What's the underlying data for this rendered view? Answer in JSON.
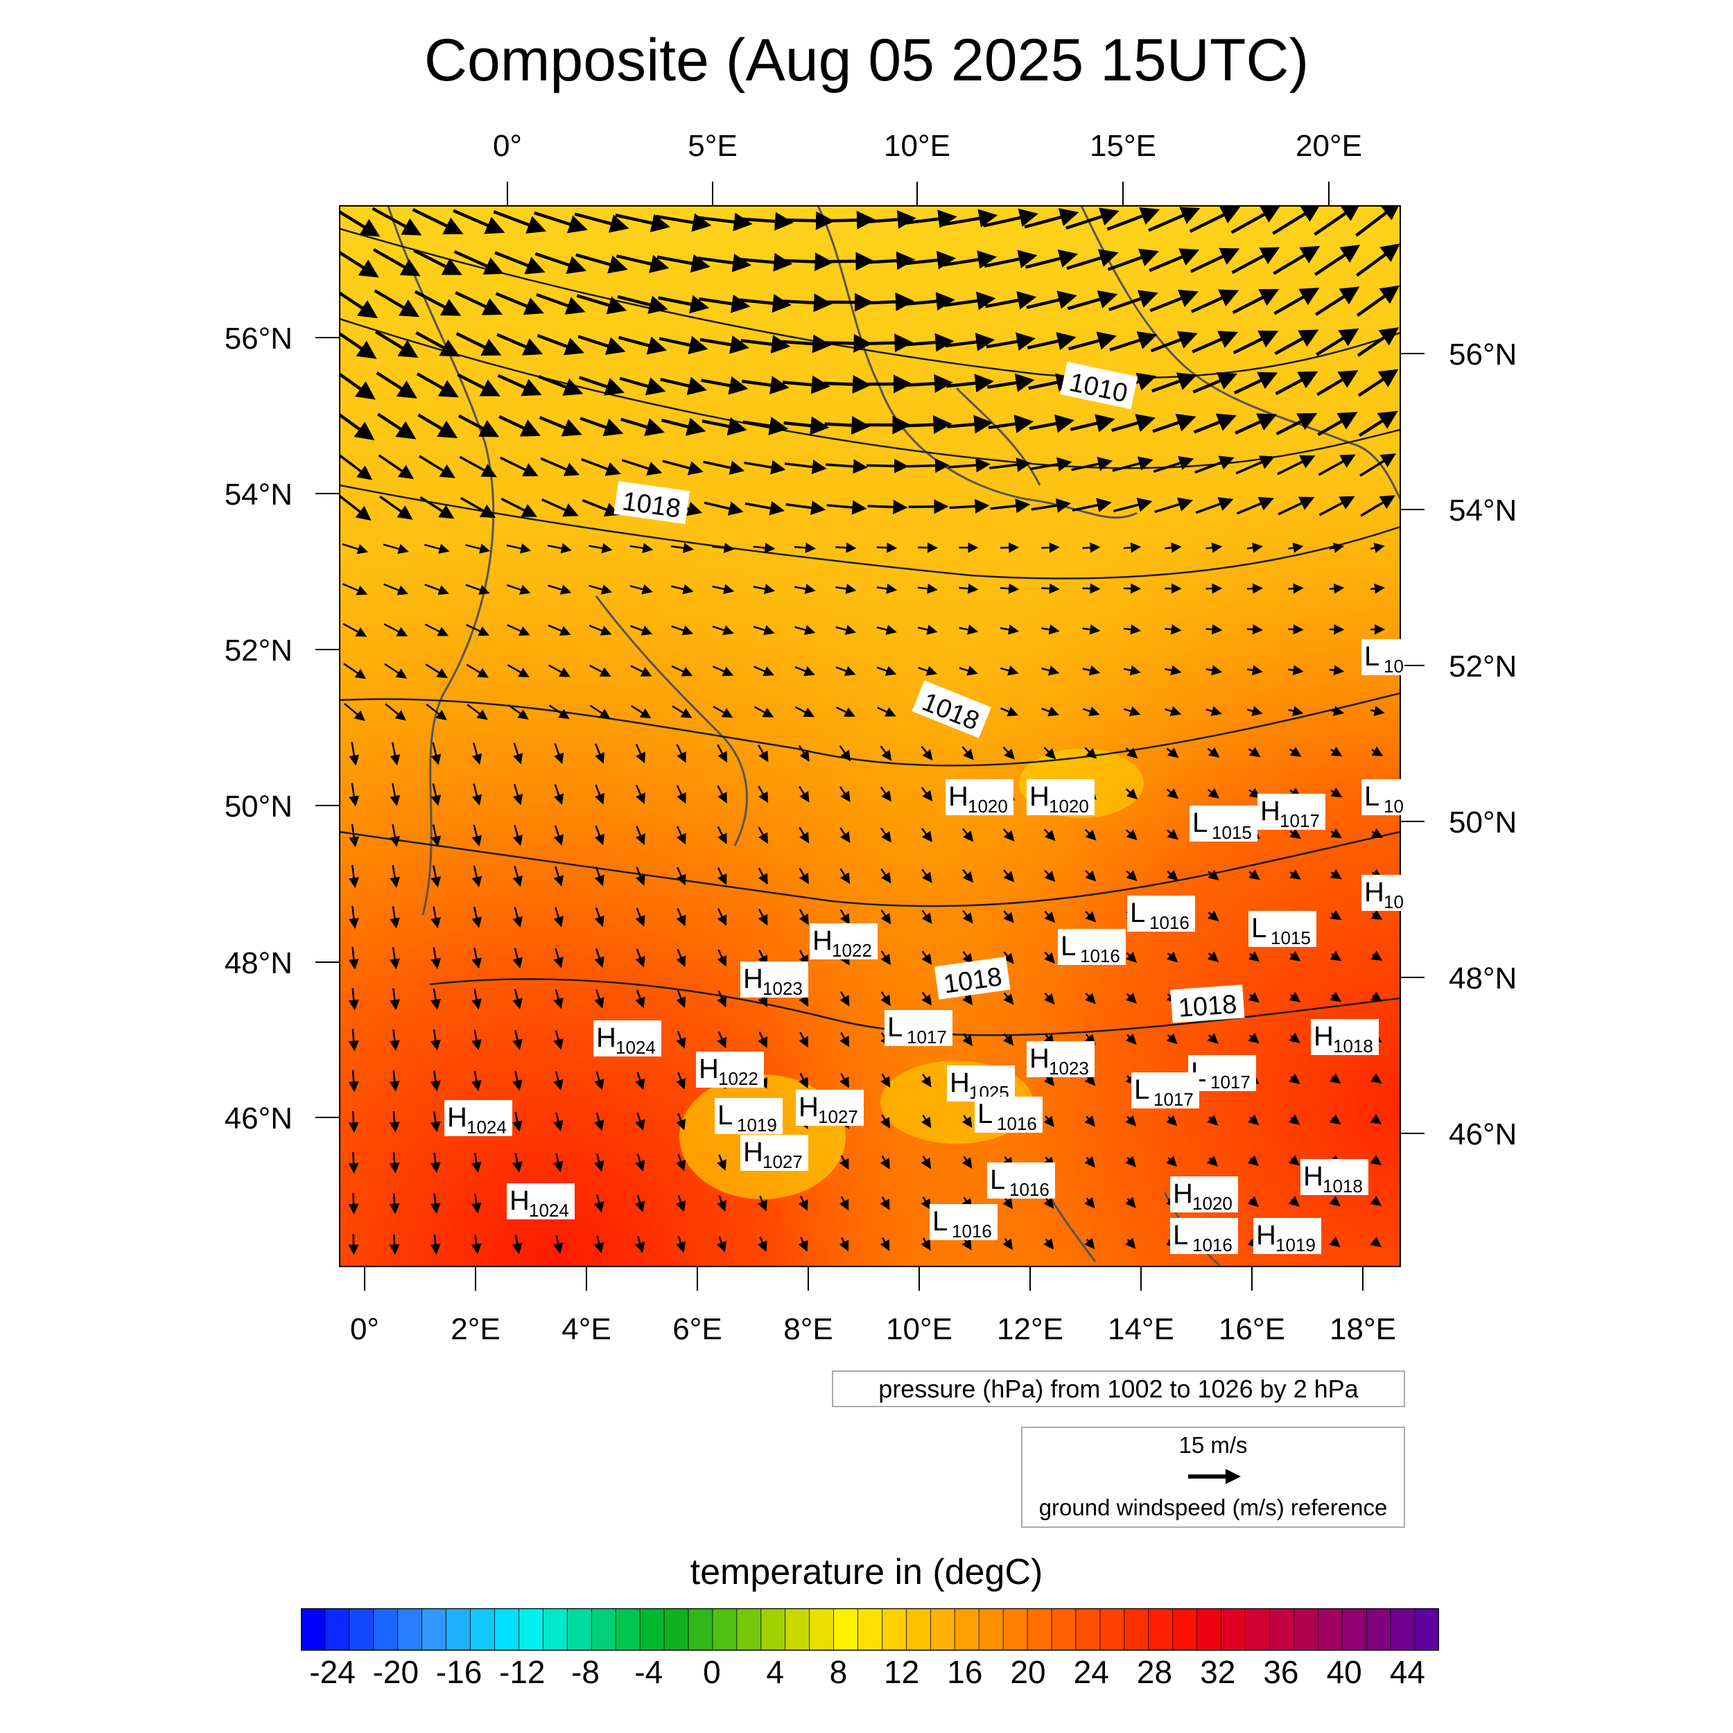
{
  "title": "Composite (Aug 05 2025 15UTC)",
  "top_lon_labels": [
    "0°",
    "5°E",
    "10°E",
    "15°E",
    "20°E"
  ],
  "bottom_lon_labels": [
    "0°",
    "2°E",
    "4°E",
    "6°E",
    "8°E",
    "10°E",
    "12°E",
    "14°E",
    "16°E",
    "18°E"
  ],
  "left_lat_labels": [
    "56°N",
    "54°N",
    "52°N",
    "50°N",
    "48°N",
    "46°N"
  ],
  "right_lat_labels": [
    "56°N",
    "54°N",
    "52°N",
    "50°N",
    "48°N",
    "46°N"
  ],
  "isobar_labels": [
    "1010",
    "1018",
    "1018",
    "1018",
    "1018"
  ],
  "pressure_centers": [
    {
      "letter": "H",
      "value": "1020"
    },
    {
      "letter": "H",
      "value": "1020"
    },
    {
      "letter": "L",
      "value": "1015"
    },
    {
      "letter": "H",
      "value": "1017"
    },
    {
      "letter": "L",
      "value": "10"
    },
    {
      "letter": "L",
      "value": "10"
    },
    {
      "letter": "H",
      "value": "10"
    },
    {
      "letter": "L",
      "value": "1016"
    },
    {
      "letter": "L",
      "value": "1015"
    },
    {
      "letter": "L",
      "value": "1016"
    },
    {
      "letter": "H",
      "value": "1022"
    },
    {
      "letter": "H",
      "value": "1023"
    },
    {
      "letter": "H",
      "value": "1024"
    },
    {
      "letter": "L",
      "value": "1017"
    },
    {
      "letter": "H",
      "value": "1018"
    },
    {
      "letter": "H",
      "value": "1022"
    },
    {
      "letter": "H",
      "value": "1023"
    },
    {
      "letter": "L",
      "value": "1017"
    },
    {
      "letter": "H",
      "value": "1025"
    },
    {
      "letter": "L",
      "value": "1017"
    },
    {
      "letter": "H",
      "value": "1024"
    },
    {
      "letter": "L",
      "value": "1019"
    },
    {
      "letter": "H",
      "value": "1027"
    },
    {
      "letter": "L",
      "value": "1016"
    },
    {
      "letter": "H",
      "value": "1027"
    },
    {
      "letter": "L",
      "value": "1016"
    },
    {
      "letter": "H",
      "value": "1018"
    },
    {
      "letter": "H",
      "value": "1020"
    },
    {
      "letter": "H",
      "value": "1024"
    },
    {
      "letter": "L",
      "value": "1016"
    },
    {
      "letter": "L",
      "value": "1016"
    },
    {
      "letter": "H",
      "value": "1019"
    }
  ],
  "pressure_note": "pressure (hPa) from 1002 to 1026 by 2 hPa",
  "wind_reference": {
    "speed": "15 m/s",
    "description": "ground windspeed (m/s) reference"
  },
  "colorbar": {
    "title": "temperature in (degC)",
    "ticks": [
      "-24",
      "-20",
      "-16",
      "-12",
      "-8",
      "-4",
      "0",
      "4",
      "8",
      "12",
      "16",
      "20",
      "24",
      "28",
      "32",
      "36",
      "40",
      "44"
    ],
    "colors": [
      "#0000ff",
      "#0a28ff",
      "#1448ff",
      "#1e64ff",
      "#2880ff",
      "#3098ff",
      "#20b0ff",
      "#10c8ff",
      "#00e0ff",
      "#00f0f0",
      "#00e8c8",
      "#00dca0",
      "#00d078",
      "#00c450",
      "#00b830",
      "#10b020",
      "#30b818",
      "#50c010",
      "#78c808",
      "#a0d000",
      "#c8d800",
      "#e8e000",
      "#fff000",
      "#ffe000",
      "#ffd000",
      "#ffc000",
      "#ffb000",
      "#ffa000",
      "#ff9000",
      "#ff8000",
      "#ff7000",
      "#ff6000",
      "#ff5000",
      "#ff4000",
      "#ff3000",
      "#ff2000",
      "#ff1000",
      "#f00010",
      "#e00020",
      "#d00030",
      "#c00040",
      "#b00050",
      "#a00060",
      "#900070",
      "#800080",
      "#700090",
      "#6000a0"
    ],
    "min": -26,
    "max": 46
  }
}
